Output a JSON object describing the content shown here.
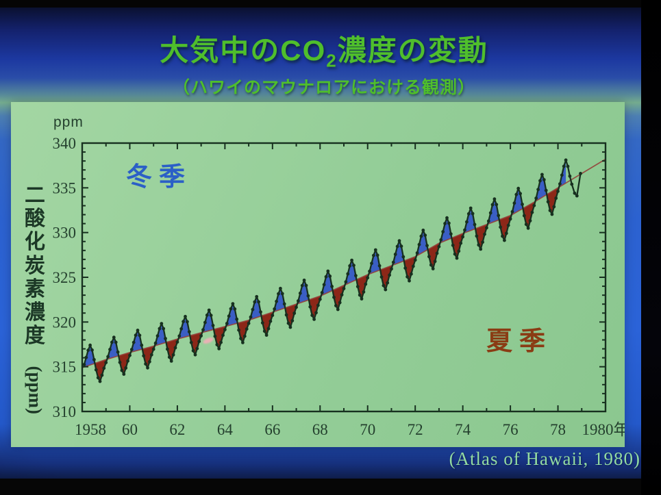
{
  "slide": {
    "title_prefix": "大気中のCO",
    "title_sub": "2",
    "title_suffix": "濃度の変動",
    "subtitle": "（ハワイのマウナロアにおける観測）",
    "attribution": "(Atlas of Hawaii, 1980)"
  },
  "chart_data": {
    "type": "line",
    "title": "大気中のCO2濃度の変動（ハワイのマウナロアにおける観測）",
    "y_axis_unit_label": "ppm",
    "ylabel_vertical": "二酸化炭素濃度",
    "ylabel_unit": "(ppm)",
    "ylim": [
      310,
      340
    ],
    "xlim": [
      1958,
      1980
    ],
    "grid": false,
    "y_ticks": [
      310,
      315,
      320,
      325,
      330,
      335,
      340
    ],
    "y_minor_step": 1,
    "x_tick_years": [
      1958,
      1960,
      1962,
      1964,
      1966,
      1968,
      1970,
      1972,
      1974,
      1976,
      1978,
      1980
    ],
    "x_tick_labels": [
      "1958",
      "60",
      "62",
      "64",
      "66",
      "68",
      "70",
      "72",
      "74",
      "76",
      "78",
      "1980年"
    ],
    "annotations": [
      {
        "text": "冬季",
        "meaning": "winter (seasonal maxima, blue fill)",
        "color": "#2b5fc7"
      },
      {
        "text": "夏季",
        "meaning": "summer (seasonal minima, dark red fill)",
        "color": "#8a3c14"
      }
    ],
    "source": "(Atlas of Hawaii, 1980)",
    "series": [
      {
        "name": "annual mean CO2 trend (ppm)",
        "x": [
          1958,
          1959,
          1960,
          1961,
          1962,
          1963,
          1964,
          1965,
          1966,
          1967,
          1968,
          1969,
          1970,
          1971,
          1972,
          1973,
          1974,
          1975,
          1976,
          1977,
          1978,
          1979,
          1980
        ],
        "values": [
          314.9,
          315.8,
          316.6,
          317.3,
          318.1,
          318.8,
          319.5,
          320.2,
          321.1,
          322.0,
          322.9,
          324.1,
          325.3,
          326.3,
          327.3,
          328.8,
          329.9,
          330.9,
          331.9,
          333.4,
          335.0,
          336.6,
          338.2
        ]
      },
      {
        "name": "seasonal cycle normalized monthly offsets Jan-Dec",
        "values": [
          -0.15,
          0.12,
          0.45,
          0.78,
          1.0,
          0.72,
          0.2,
          -0.35,
          -0.78,
          -1.0,
          -0.72,
          -0.4
        ]
      },
      {
        "name": "seasonal amplitude (ppm, half peak-to-trough)",
        "start": 2.2,
        "end": 2.6
      },
      {
        "name": "unfilled tail points [year, ppm]",
        "points": [
          [
            1978.417,
            337.4
          ],
          [
            1978.5,
            336.3
          ],
          [
            1978.583,
            335.4
          ],
          [
            1978.7,
            334.4
          ],
          [
            1978.8,
            334.1
          ],
          [
            1978.95,
            336.6
          ]
        ]
      }
    ],
    "colors": {
      "winter_fill": "#3a5ec4",
      "summer_fill": "#8c2718",
      "curve": "#17301f",
      "trend": "#93403a",
      "panel": "#96cf9a",
      "axis_text": "#24402e"
    }
  }
}
